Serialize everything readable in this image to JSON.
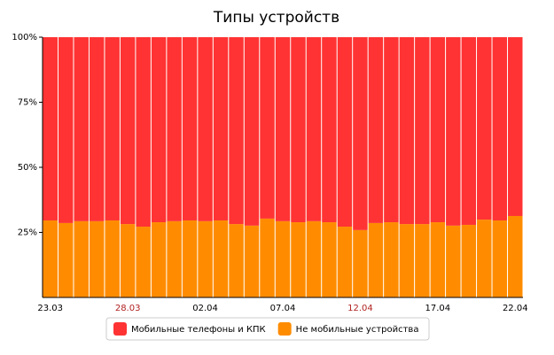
{
  "chart_data": {
    "type": "stacked_bar_100",
    "title": "Типы устройств",
    "categories": [
      "23.03",
      null,
      null,
      null,
      null,
      "28.03",
      null,
      null,
      null,
      null,
      "02.04",
      null,
      null,
      null,
      null,
      "07.04",
      null,
      null,
      null,
      null,
      "12.04",
      null,
      null,
      null,
      null,
      "17.04",
      null,
      null,
      null,
      null,
      "22.04"
    ],
    "x_label_colors": [
      "#000000",
      null,
      null,
      null,
      null,
      "#b22222",
      null,
      null,
      null,
      null,
      "#000000",
      null,
      null,
      null,
      null,
      "#000000",
      null,
      null,
      null,
      null,
      "#b22222",
      null,
      null,
      null,
      null,
      "#000000",
      null,
      null,
      null,
      null,
      "#000000"
    ],
    "series": [
      {
        "name": "Не мобильные устройства",
        "color": "#ff8c00",
        "values": [
          29.6,
          28.6,
          29.3,
          29.3,
          29.6,
          28.2,
          27.2,
          28.9,
          29.3,
          29.6,
          29.3,
          29.6,
          28.2,
          27.6,
          30.3,
          29.3,
          28.9,
          29.3,
          28.9,
          27.2,
          25.9,
          28.6,
          28.9,
          28.2,
          28.2,
          28.9,
          27.6,
          27.9,
          29.9,
          29.6,
          31.3
        ]
      },
      {
        "name": "Мобильные телефоны и КПК",
        "color": "#ff3333",
        "values": [
          70.4,
          71.4,
          70.7,
          70.7,
          70.4,
          71.8,
          72.8,
          71.1,
          70.7,
          70.4,
          70.7,
          70.4,
          71.8,
          72.4,
          69.7,
          70.7,
          71.1,
          70.7,
          71.1,
          72.8,
          74.1,
          71.4,
          71.1,
          71.8,
          71.8,
          71.1,
          72.4,
          72.1,
          70.1,
          70.4,
          68.7
        ]
      }
    ],
    "legend_order": [
      1,
      0
    ],
    "ylim": [
      0,
      100
    ],
    "yticks": [
      {
        "value": 25,
        "label": "25%"
      },
      {
        "value": 50,
        "label": "50%"
      },
      {
        "value": 75,
        "label": "75%"
      },
      {
        "value": 100,
        "label": "100%"
      }
    ]
  }
}
